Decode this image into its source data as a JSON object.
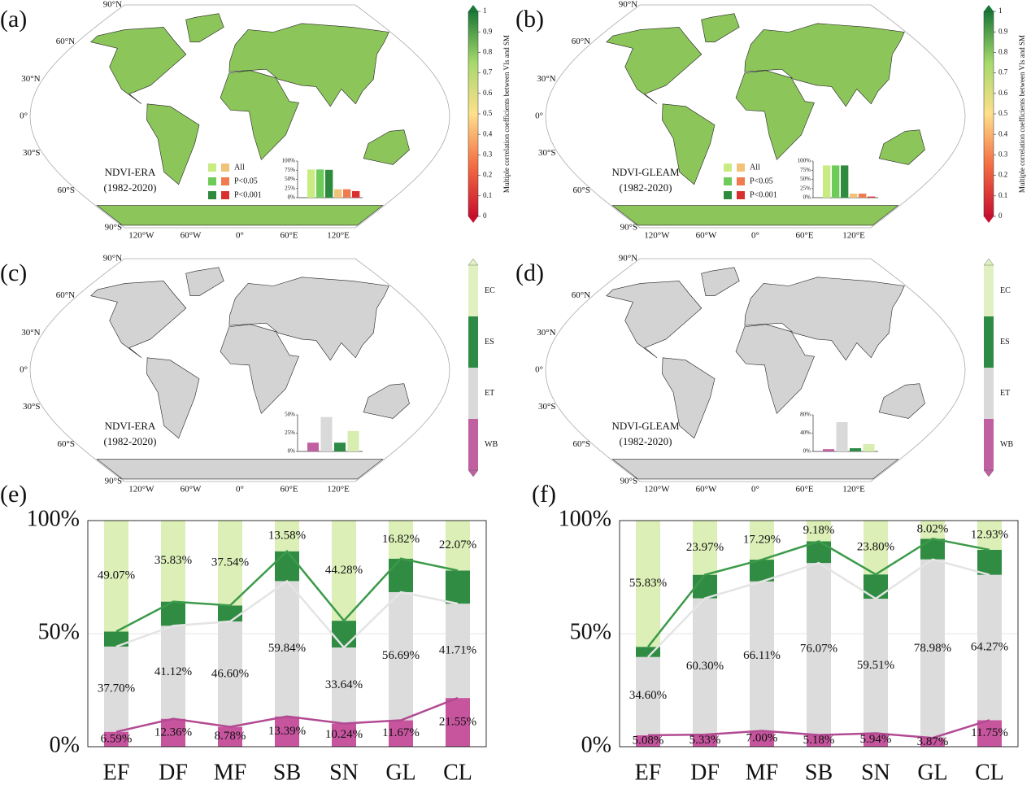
{
  "chart_data": [
    {
      "type": "map",
      "panel": "(a)",
      "title": "NDVI-ERA",
      "subtitle": "(1982-2020)",
      "colorbar": {
        "label": "Multiple correlation coefficients between VIs and SM",
        "ylim": [
          0,
          1
        ],
        "yticks": [
          0,
          0.1,
          0.2,
          0.3,
          0.4,
          0.5,
          0.6,
          0.7,
          0.8,
          0.9,
          1
        ],
        "colors": [
          "#c8102e",
          "#f46d43",
          "#fee08b",
          "#a6d96a",
          "#1a7837"
        ]
      },
      "legend": {
        "names": [
          "All",
          "P<0.05",
          "P<0.001"
        ]
      },
      "inset": {
        "ylim": [
          0,
          100
        ],
        "yticks": [
          {
            "value": 0,
            "label": "0%"
          },
          {
            "value": 25,
            "label": "25%"
          },
          {
            "value": 50,
            "label": "50%"
          },
          {
            "value": 75,
            "label": "75%"
          },
          {
            "value": 100,
            "label": "100%"
          }
        ],
        "values": [
          77,
          77,
          76,
          23,
          23,
          18
        ],
        "colors": [
          "#c8ec82",
          "#6ecb5a",
          "#2e8b3e",
          "#f2c27a",
          "#ef7b4f",
          "#d7302f"
        ]
      }
    },
    {
      "type": "map",
      "panel": "(b)",
      "title": "NDVI-GLEAM",
      "subtitle": "(1982-2020)",
      "colorbar": {
        "label": "Multiple correlation coefficients between VIs and SM",
        "ylim": [
          0,
          1
        ],
        "yticks": [
          0,
          0.1,
          0.2,
          0.3,
          0.4,
          0.5,
          0.6,
          0.7,
          0.8,
          0.9,
          1
        ],
        "colors": [
          "#c8102e",
          "#f46d43",
          "#fee08b",
          "#a6d96a",
          "#1a7837"
        ]
      },
      "legend": {
        "names": [
          "All",
          "P<0.05",
          "P<0.001"
        ]
      },
      "inset": {
        "ylim": [
          0,
          100
        ],
        "yticks": [
          {
            "value": 0,
            "label": "0%"
          },
          {
            "value": 25,
            "label": "25%"
          },
          {
            "value": 50,
            "label": "50%"
          },
          {
            "value": 75,
            "label": "75%"
          },
          {
            "value": 100,
            "label": "100%"
          }
        ],
        "values": [
          88,
          88,
          88,
          11,
          11,
          3
        ],
        "colors": [
          "#c8ec82",
          "#6ecb5a",
          "#2e8b3e",
          "#f2c27a",
          "#ef7b4f",
          "#d7302f"
        ]
      }
    },
    {
      "type": "map",
      "panel": "(c)",
      "title": "NDVI-ERA",
      "subtitle": "(1982-2020)",
      "colorbar": {
        "categories": [
          "EC",
          "ES",
          "ET",
          "WB"
        ],
        "colors": [
          "#e0f0c0",
          "#2e8b45",
          "#d9d9d9",
          "#c060a0"
        ]
      },
      "inset": {
        "ylim": [
          0,
          50
        ],
        "yticks": [
          {
            "value": 0,
            "label": "0%"
          },
          {
            "value": 25,
            "label": "25%"
          },
          {
            "value": 50,
            "label": "50%"
          }
        ],
        "values": [
          12,
          47,
          12,
          28
        ],
        "colors": [
          "#c060a0",
          "#d9d9d9",
          "#2e8b45",
          "#d8eeb0"
        ]
      }
    },
    {
      "type": "map",
      "panel": "(d)",
      "title": "NDVI-GLEAM",
      "subtitle": "(1982-2020)",
      "colorbar": {
        "categories": [
          "EC",
          "ES",
          "ET",
          "WB"
        ],
        "colors": [
          "#e0f0c0",
          "#2e8b45",
          "#d9d9d9",
          "#c060a0"
        ]
      },
      "inset": {
        "ylim": [
          0,
          80
        ],
        "yticks": [
          {
            "value": 0,
            "label": "0%"
          },
          {
            "value": 40,
            "label": "40%"
          },
          {
            "value": 80,
            "label": "80%"
          }
        ],
        "values": [
          5,
          64,
          7,
          16
        ],
        "colors": [
          "#c060a0",
          "#d9d9d9",
          "#2e8b45",
          "#d8eeb0"
        ]
      }
    },
    {
      "type": "bar",
      "panel": "(e)",
      "stacked": true,
      "grid": true,
      "categories": [
        "EF",
        "DF",
        "MF",
        "SB",
        "SN",
        "GL",
        "CL"
      ],
      "ylim": [
        0,
        100
      ],
      "yticks": [
        {
          "value": 0,
          "label": "0%"
        },
        {
          "value": 50,
          "label": "50%"
        },
        {
          "value": 100,
          "label": "100%"
        }
      ],
      "series": [
        {
          "color": "#c6559e",
          "line_color": "#b24a92",
          "values": [
            6.59,
            12.36,
            8.78,
            13.39,
            10.24,
            11.67,
            21.55
          ],
          "value_labels": [
            "6.59%",
            "12.36%",
            "8.78%",
            "13.39%",
            "10.24%",
            "11.67%",
            "21.55%"
          ]
        },
        {
          "color": "#dcdcdc",
          "line_color": "#e4e4e4",
          "values": [
            37.7,
            41.12,
            46.6,
            59.84,
            33.64,
            56.69,
            41.71
          ],
          "value_labels": [
            "37.70%",
            "41.12%",
            "46.60%",
            "59.84%",
            "33.64%",
            "56.69%",
            "41.71%"
          ]
        },
        {
          "color": "#2f8c42",
          "line_color": "#3c9a4a",
          "values": [
            6.64,
            10.69,
            7.08,
            13.19,
            11.84,
            14.82,
            14.67
          ]
        },
        {
          "color": "#dcefb7",
          "values": [
            49.07,
            35.83,
            37.54,
            13.58,
            44.28,
            16.82,
            22.07
          ],
          "value_labels": [
            "49.07%",
            "35.83%",
            "37.54%",
            "13.58%",
            "44.28%",
            "16.82%",
            "22.07%"
          ]
        }
      ]
    },
    {
      "type": "bar",
      "panel": "(f)",
      "stacked": true,
      "grid": true,
      "categories": [
        "EF",
        "DF",
        "MF",
        "SB",
        "SN",
        "GL",
        "CL"
      ],
      "ylim": [
        0,
        100
      ],
      "yticks": [
        {
          "value": 0,
          "label": "0%"
        },
        {
          "value": 50,
          "label": "50%"
        },
        {
          "value": 100,
          "label": "100%"
        }
      ],
      "series": [
        {
          "color": "#c6559e",
          "line_color": "#b24a92",
          "values": [
            5.08,
            5.33,
            7.0,
            5.18,
            5.94,
            3.87,
            11.75
          ],
          "value_labels": [
            "5.08%",
            "5.33%",
            "7.00%",
            "5.18%",
            "5.94%",
            "3.87%",
            "11.75%"
          ]
        },
        {
          "color": "#dcdcdc",
          "line_color": "#e4e4e4",
          "values": [
            34.6,
            60.3,
            66.11,
            76.07,
            59.51,
            78.98,
            64.27
          ],
          "value_labels": [
            "34.60%",
            "60.30%",
            "66.11%",
            "76.07%",
            "59.51%",
            "78.98%",
            "64.27%"
          ]
        },
        {
          "color": "#2f8c42",
          "line_color": "#3c9a4a",
          "values": [
            4.49,
            10.4,
            9.6,
            9.57,
            10.75,
            9.13,
            11.05
          ]
        },
        {
          "color": "#dcefb7",
          "values": [
            55.83,
            23.97,
            17.29,
            9.18,
            23.8,
            8.02,
            12.93
          ],
          "value_labels": [
            "55.83%",
            "23.97%",
            "17.29%",
            "9.18%",
            "23.80%",
            "8.02%",
            "12.93%"
          ]
        }
      ]
    }
  ],
  "map_grid": {
    "lat": [
      "90°N",
      "60°N",
      "30°N",
      "0°",
      "30°S",
      "60°S",
      "90°S"
    ],
    "lon": [
      "120°W",
      "60°W",
      "0°",
      "60°E",
      "120°E"
    ]
  }
}
